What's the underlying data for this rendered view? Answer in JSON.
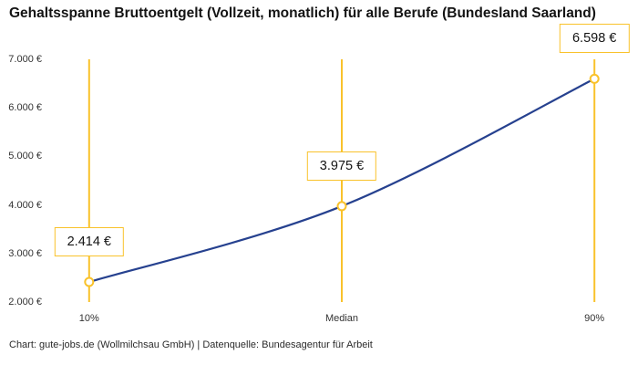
{
  "header": {
    "title": "Gehaltsspanne Bruttoentgelt (Vollzeit, monatlich) für alle Berufe (Bundesland Saarland)"
  },
  "footer": {
    "credit": "Chart: gute-jobs.de (Wollmilchsau GmbH) | Datenquelle: Bundesagentur für Arbeit"
  },
  "chart_data": {
    "type": "line",
    "title": "Gehaltsspanne Bruttoentgelt (Vollzeit, monatlich) für alle Berufe (Bundesland Saarland)",
    "categories": [
      "10%",
      "Median",
      "90%"
    ],
    "values": [
      2414,
      3975,
      6598
    ],
    "value_labels": [
      "2.414 €",
      "3.975 €",
      "6.598 €"
    ],
    "ylim": [
      2000,
      7000
    ],
    "ytick_step": 1000,
    "ytick_labels": [
      "2.000 €",
      "3.000 €",
      "4.000 €",
      "5.000 €",
      "6.000 €",
      "7.000 €"
    ],
    "xlabel": "",
    "ylabel": "",
    "grid": "vertical highlight lines at each category only",
    "legend": "none",
    "colors": {
      "line": "#26418f",
      "accent": "#f9c22b",
      "marker_fill": "#ffffff",
      "text": "#141414",
      "tick_text": "#333333"
    }
  }
}
